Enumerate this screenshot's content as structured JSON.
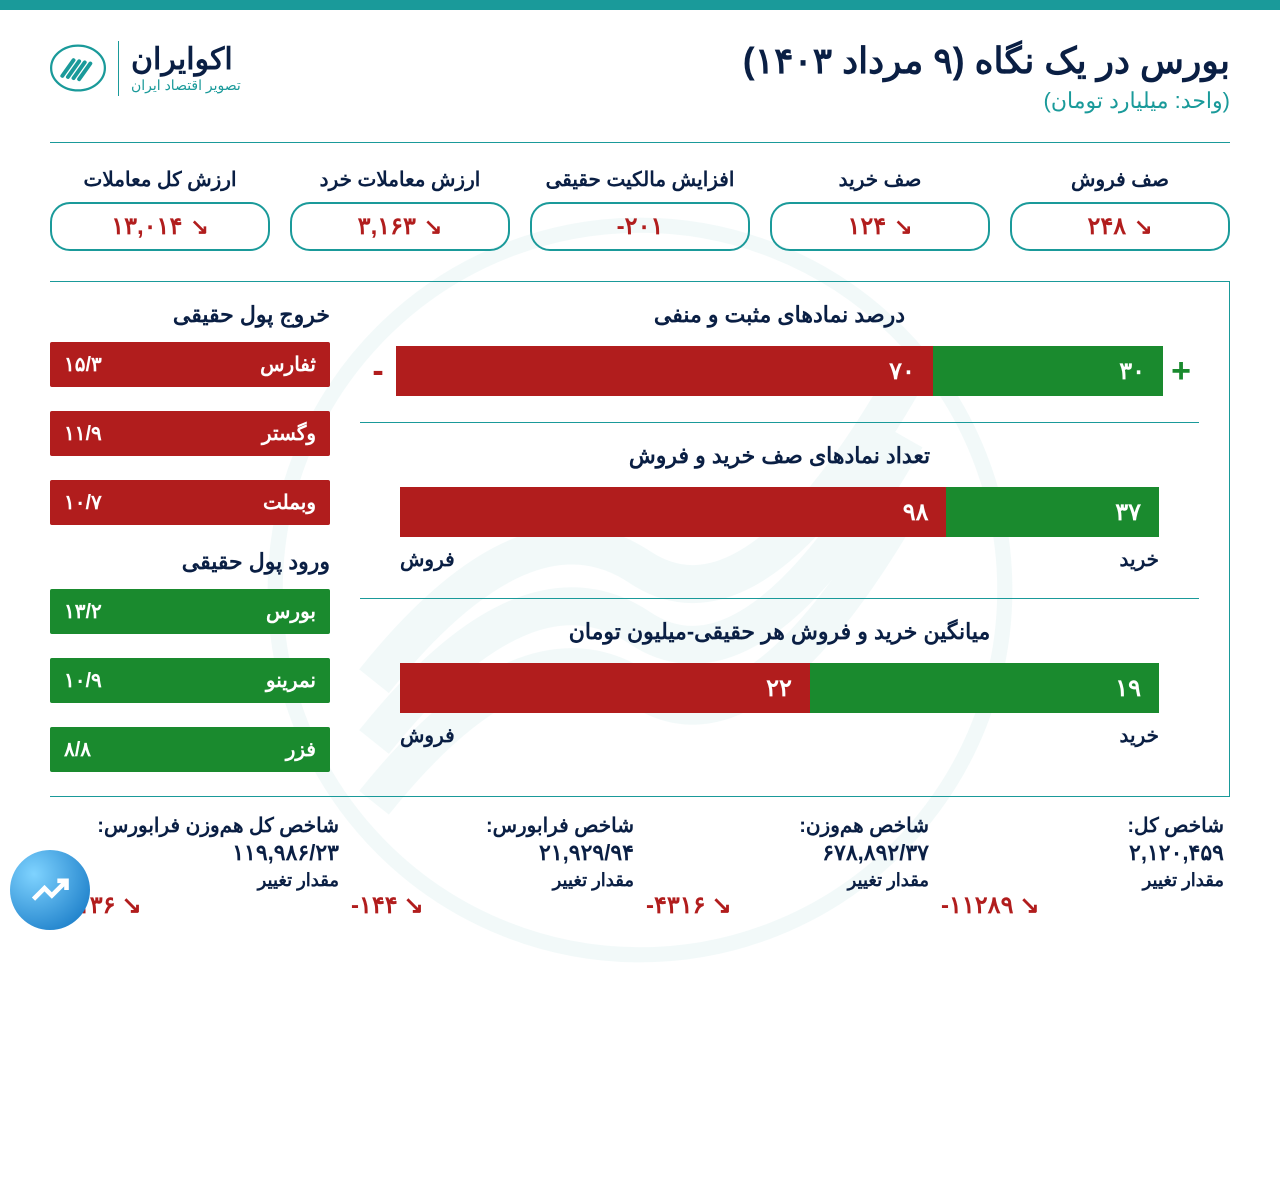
{
  "colors": {
    "teal": "#1a9a9a",
    "navy": "#0a1f44",
    "red": "#b11d1d",
    "green": "#1a8a2e",
    "white": "#ffffff"
  },
  "header": {
    "title": "بورس در یک نگاه (۹ مرداد ۱۴۰۳)",
    "subtitle": "(واحد: میلیارد تومان)",
    "logo_main": "اکوایران",
    "logo_sub": "تصویر اقتصاد ایران"
  },
  "stats": [
    {
      "label": "ارزش کل معاملات",
      "value": "۱۳,۰۱۴",
      "trend": "down"
    },
    {
      "label": "ارزش معاملات خرد",
      "value": "۳,۱۶۳",
      "trend": "down"
    },
    {
      "label": "افزایش مالکیت حقیقی",
      "value": "۲۰۱-",
      "trend": "none"
    },
    {
      "label": "صف خرید",
      "value": "۱۲۴",
      "trend": "down"
    },
    {
      "label": "صف فروش",
      "value": "۲۴۸",
      "trend": "down"
    }
  ],
  "outflow": {
    "title": "خروج پول حقیقی",
    "items": [
      {
        "name": "ثفارس",
        "value": "۱۵/۳"
      },
      {
        "name": "وگستر",
        "value": "۱۱/۹"
      },
      {
        "name": "وبملت",
        "value": "۱۰/۷"
      }
    ]
  },
  "inflow": {
    "title": "ورود پول حقیقی",
    "items": [
      {
        "name": "بورس",
        "value": "۱۳/۲"
      },
      {
        "name": "نمرینو",
        "value": "۱۰/۹"
      },
      {
        "name": "فزر",
        "value": "۸/۸"
      }
    ]
  },
  "charts": {
    "pos_neg": {
      "title": "درصد نمادهای مثبت و منفی",
      "green": {
        "value": "۳۰",
        "pct": 30
      },
      "red": {
        "value": "۷۰",
        "pct": 70
      },
      "plus": "+",
      "minus": "-"
    },
    "queue": {
      "title": "تعداد نمادهای صف خرید و فروش",
      "green": {
        "value": "۳۷",
        "pct": 28,
        "label": "خرید"
      },
      "red": {
        "value": "۹۸",
        "pct": 72,
        "label": "فروش"
      }
    },
    "avg": {
      "title": "میانگین خرید و فروش هر حقیقی-میلیون تومان",
      "green": {
        "value": "۱۹",
        "pct": 46,
        "label": "خرید"
      },
      "red": {
        "value": "۲۲",
        "pct": 54,
        "label": "فروش"
      }
    }
  },
  "indices": [
    {
      "title": "شاخص کل:",
      "value": "۲,۱۲۰,۴۵۹",
      "change_label": "مقدار تغییر",
      "change": "۱۱۲۸۹-"
    },
    {
      "title": "شاخص هم‌وزن:",
      "value": "۶۷۸,۸۹۲/۳۷",
      "change_label": "مقدار تغییر",
      "change": "۴۳۱۶-"
    },
    {
      "title": "شاخص فرابورس:",
      "value": "۲۱,۹۲۹/۹۴",
      "change_label": "مقدار تغییر",
      "change": "۱۴۴-"
    },
    {
      "title": "شاخص کل هم‌وزن فرابورس:",
      "value": "۱۱۹,۹۸۶/۲۳",
      "change_label": "مقدار تغییر",
      "change": "۱۱۳۶-"
    }
  ],
  "arrow_down": "↘"
}
